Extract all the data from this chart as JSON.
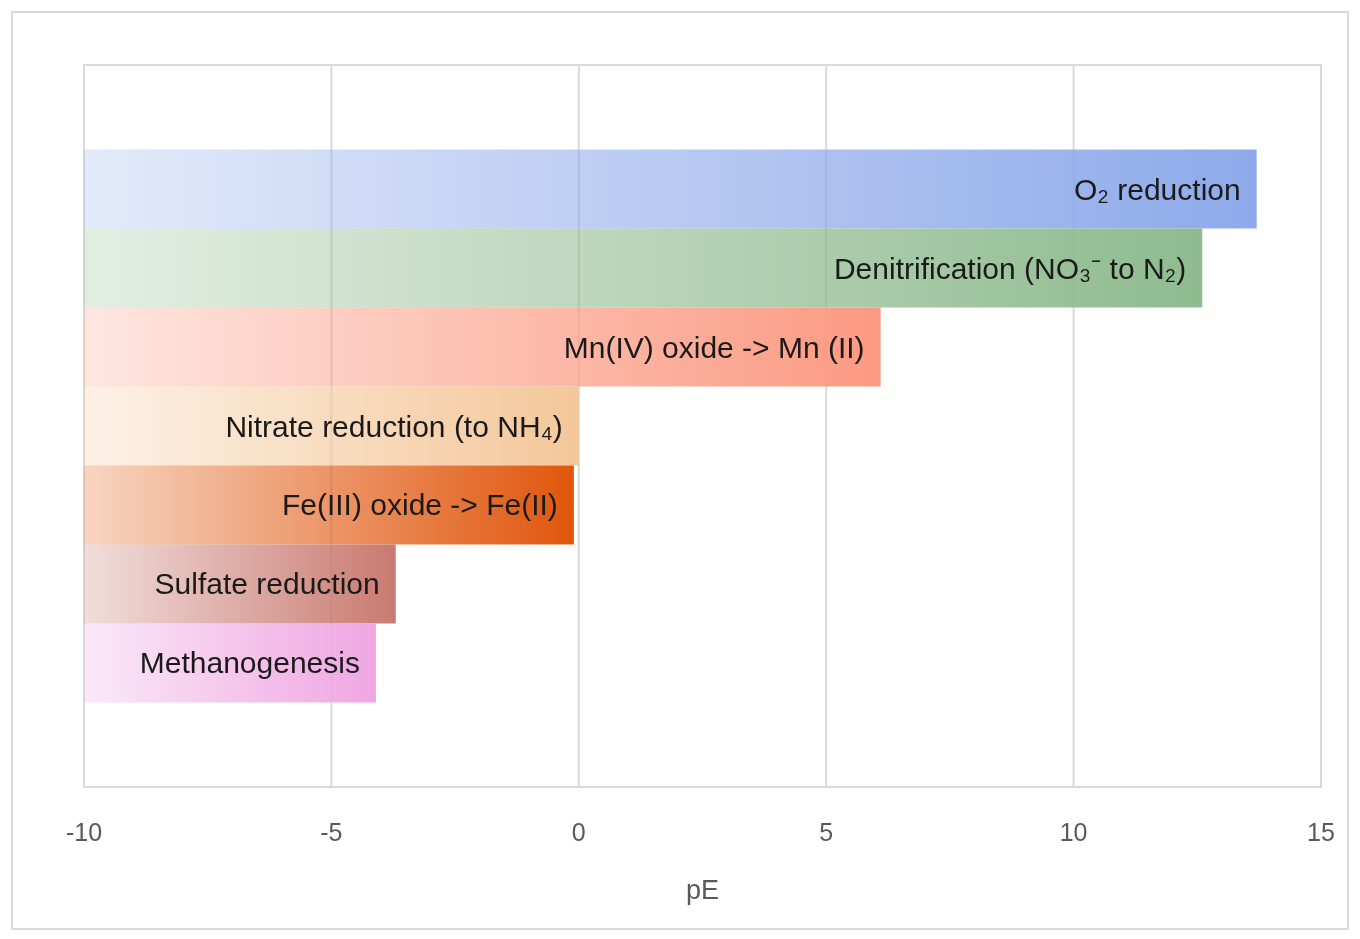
{
  "chart_data": {
    "type": "bar",
    "orientation": "horizontal",
    "xlabel": "pE",
    "categories": [
      "O₂ reduction",
      "Denitrification (NO₃⁻ to N₂)",
      "Mn(IV) oxide -> Mn (II)",
      "Nitrate reduction (to NH₄)",
      "Fe(III) oxide -> Fe(II)",
      "Sulfate reduction",
      "Methanogenesis"
    ],
    "base": [
      -10,
      -10,
      -10,
      -10,
      -10,
      -10,
      -10
    ],
    "values": [
      23.7,
      22.6,
      16.1,
      10,
      9.9,
      6.3,
      5.9
    ],
    "colors": [
      "#8eaaea",
      "#8fbb8f",
      "#fb9a82",
      "#f4c79a",
      "#e0560c",
      "#c97a70",
      "#efa6e2"
    ],
    "xlim": [
      -10,
      15
    ],
    "xticks": [
      -10,
      -5,
      0,
      5,
      10,
      15
    ],
    "grid": "x"
  }
}
